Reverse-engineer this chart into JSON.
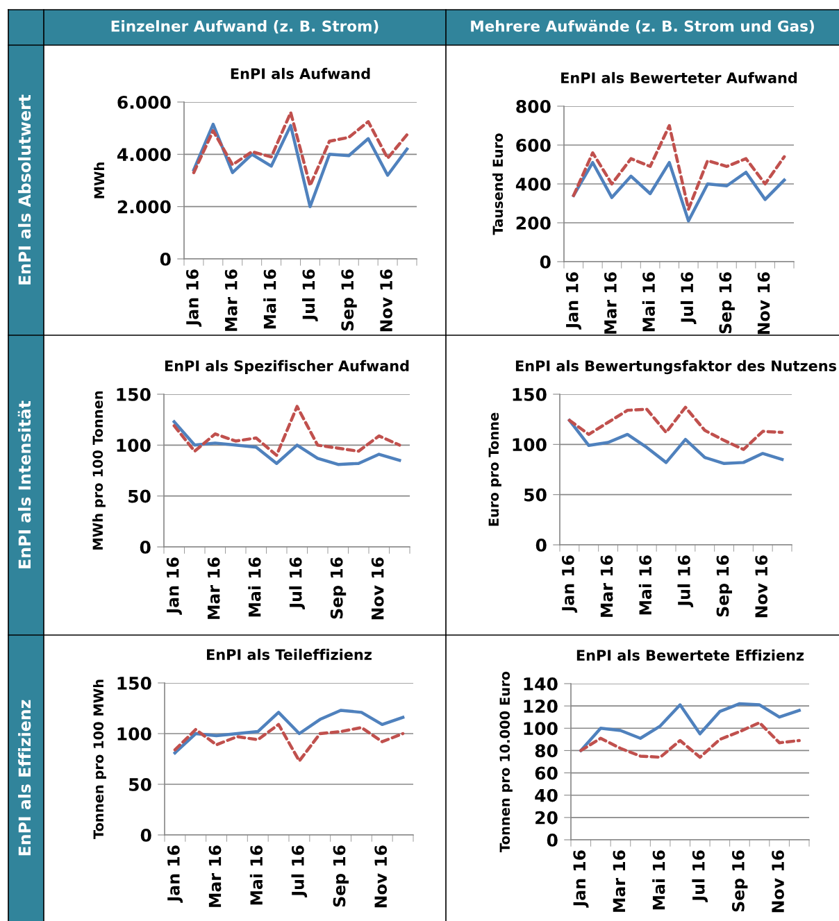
{
  "chart_data": [
    {
      "type": "other",
      "categories": [
        "Einzelner Aufwand (z. B. Strom)",
        "Mehrere Aufwände (z. B. Strom und Gas)"
      ],
      "y_categories": [
        "EnPI als Absolutwert",
        "EnPI als Intensität",
        "EnPI als Effizienz"
      ],
      "color": "#31849b"
    },
    {
      "type": "line",
      "title": "EnPI als Aufwand",
      "ylabel": "MWh",
      "categories": [
        "Jan 16",
        null,
        "Mar 16",
        null,
        "Mai 16",
        null,
        "Jul 16",
        null,
        "Sep 16",
        null,
        "Nov 16",
        null
      ],
      "ylim": [
        0,
        6000
      ],
      "yticks": [
        {
          "value": 0,
          "label": "0"
        },
        {
          "value": 2000,
          "label": "2.000"
        },
        {
          "value": 4000,
          "label": "4.000"
        },
        {
          "value": 6000,
          "label": "6.000"
        }
      ],
      "grid": "y",
      "marker": "none",
      "series": [
        {
          "color": "#4f81bd",
          "line_style": "solid",
          "values": [
            3400,
            5150,
            3300,
            4000,
            3550,
            5100,
            2000,
            4000,
            3950,
            4600,
            3200,
            4200
          ]
        },
        {
          "color": "#c0504d",
          "line_style": "dashed",
          "values": [
            3300,
            4900,
            3600,
            4100,
            3900,
            5600,
            2800,
            4500,
            4650,
            5250,
            3850,
            4750
          ]
        }
      ]
    },
    {
      "type": "line",
      "title": "EnPI als Bewerteter Aufwand",
      "ylabel": "Tausend Euro",
      "categories": [
        "Jan 16",
        null,
        "Mar 16",
        null,
        "Mai 16",
        null,
        "Jul 16",
        null,
        "Sep 16",
        null,
        "Nov 16",
        null
      ],
      "ylim": [
        0,
        800
      ],
      "yticks": [
        0,
        200,
        400,
        600,
        800
      ],
      "grid": "y",
      "marker": "none",
      "series": [
        {
          "color": "#4f81bd",
          "line_style": "solid",
          "values": [
            340,
            510,
            330,
            440,
            350,
            510,
            210,
            400,
            390,
            460,
            320,
            420
          ]
        },
        {
          "color": "#c0504d",
          "line_style": "dashed",
          "values": [
            340,
            560,
            400,
            530,
            490,
            700,
            270,
            520,
            490,
            530,
            400,
            540
          ]
        }
      ]
    },
    {
      "type": "line",
      "title": "EnPI als Spezifischer Aufwand",
      "ylabel": "MWh pro 100 Tonnen",
      "categories": [
        "Jan 16",
        null,
        "Mar 16",
        null,
        "Mai 16",
        null,
        "Jul 16",
        null,
        "Sep 16",
        null,
        "Nov 16",
        null
      ],
      "ylim": [
        0,
        150
      ],
      "yticks": [
        0,
        50,
        100,
        150
      ],
      "grid": "y",
      "marker": "none",
      "series": [
        {
          "color": "#4f81bd",
          "line_style": "solid",
          "values": [
            123,
            100,
            102,
            100,
            98,
            82,
            100,
            87,
            81,
            82,
            91,
            85
          ]
        },
        {
          "color": "#c0504d",
          "line_style": "dashed",
          "values": [
            119,
            94,
            111,
            104,
            107,
            90,
            138,
            100,
            97,
            94,
            109,
            100
          ]
        }
      ]
    },
    {
      "type": "line",
      "title": "EnPI als Bewertungsfaktor des Nutzens",
      "ylabel": "Euro pro Tonne",
      "categories": [
        "Jan 16",
        null,
        "Mar 16",
        null,
        "Mai 16",
        null,
        "Jul 16",
        null,
        "Sep 16",
        null,
        "Nov 16",
        null
      ],
      "ylim": [
        0,
        150
      ],
      "yticks": [
        0,
        50,
        100,
        150
      ],
      "grid": "y",
      "marker": "none",
      "series": [
        {
          "color": "#4f81bd",
          "line_style": "solid",
          "values": [
            124,
            99,
            102,
            110,
            97,
            82,
            105,
            87,
            81,
            82,
            91,
            85
          ]
        },
        {
          "color": "#c0504d",
          "line_style": "dashed",
          "values": [
            124,
            110,
            122,
            134,
            135,
            112,
            137,
            114,
            104,
            95,
            113,
            112
          ]
        }
      ]
    },
    {
      "type": "line",
      "title": "EnPI als Teileffizienz",
      "ylabel": "Tonnen pro 100 MWh",
      "categories": [
        "Jan 16",
        null,
        "Mar 16",
        null,
        "Mai 16",
        null,
        "Jul 16",
        null,
        "Sep 16",
        null,
        "Nov 16",
        null
      ],
      "ylim": [
        0,
        150
      ],
      "yticks": [
        0,
        50,
        100,
        150
      ],
      "grid": "y",
      "marker": "none",
      "series": [
        {
          "color": "#4f81bd",
          "line_style": "solid",
          "values": [
            81,
            100,
            98,
            100,
            102,
            121,
            100,
            114,
            123,
            121,
            109,
            116
          ]
        },
        {
          "color": "#c0504d",
          "line_style": "dashed",
          "values": [
            84,
            104,
            89,
            97,
            94,
            109,
            73,
            100,
            102,
            106,
            92,
            100
          ]
        }
      ]
    },
    {
      "type": "line",
      "title": "EnPI als Bewertete Effizienz",
      "ylabel": "Tonnen pro 10.000 Euro",
      "categories": [
        "Jan 16",
        null,
        "Mar 16",
        null,
        "Mai 16",
        null,
        "Jul 16",
        null,
        "Sep 16",
        null,
        "Nov 16",
        null
      ],
      "ylim": [
        0,
        140
      ],
      "yticks": [
        0,
        20,
        40,
        60,
        80,
        100,
        120,
        140
      ],
      "grid": "y",
      "marker": "none",
      "series": [
        {
          "color": "#4f81bd",
          "line_style": "solid",
          "values": [
            80,
            100,
            98,
            91,
            102,
            121,
            95,
            115,
            122,
            121,
            110,
            116
          ]
        },
        {
          "color": "#c0504d",
          "line_style": "dashed",
          "values": [
            80,
            91,
            82,
            75,
            74,
            89,
            74,
            90,
            97,
            105,
            87,
            89
          ]
        }
      ]
    }
  ]
}
